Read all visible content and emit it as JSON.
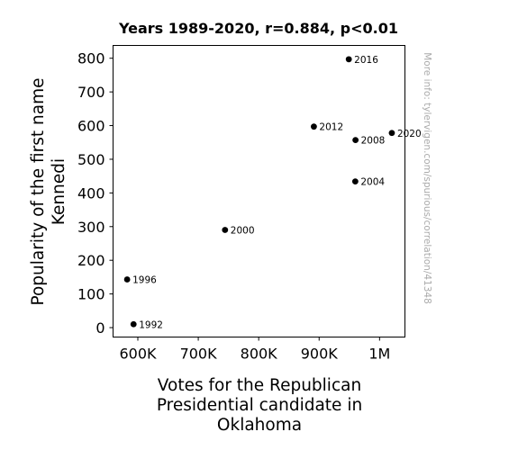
{
  "chart_data": {
    "type": "scatter",
    "title": "Years 1989-2020, r=0.884, p<0.01",
    "xlabel_lines": [
      "Votes for the Republican",
      "Presidential candidate in",
      "Oklahoma"
    ],
    "ylabel_lines": [
      "Popularity of the first name",
      "Kennedi"
    ],
    "xlim": [
      559000,
      1042000
    ],
    "ylim": [
      -28,
      838
    ],
    "x_ticks": [
      {
        "value": 600000,
        "label": "600K"
      },
      {
        "value": 700000,
        "label": "700K"
      },
      {
        "value": 800000,
        "label": "800K"
      },
      {
        "value": 900000,
        "label": "900K"
      },
      {
        "value": 1000000,
        "label": "1M"
      }
    ],
    "y_ticks": [
      {
        "value": 0,
        "label": "0"
      },
      {
        "value": 100,
        "label": "100"
      },
      {
        "value": 200,
        "label": "200"
      },
      {
        "value": 300,
        "label": "300"
      },
      {
        "value": 400,
        "label": "400"
      },
      {
        "value": 500,
        "label": "500"
      },
      {
        "value": 600,
        "label": "600"
      },
      {
        "value": 700,
        "label": "700"
      },
      {
        "value": 800,
        "label": "800"
      }
    ],
    "points": [
      {
        "label": "1992",
        "x": 592900,
        "y": 10
      },
      {
        "label": "1996",
        "x": 582300,
        "y": 143
      },
      {
        "label": "2000",
        "x": 744300,
        "y": 290
      },
      {
        "label": "2004",
        "x": 959800,
        "y": 434
      },
      {
        "label": "2008",
        "x": 960200,
        "y": 557
      },
      {
        "label": "2012",
        "x": 891300,
        "y": 597
      },
      {
        "label": "2016",
        "x": 949100,
        "y": 797
      },
      {
        "label": "2020",
        "x": 1020300,
        "y": 578
      }
    ],
    "grid": false,
    "point_color": "#000000"
  },
  "watermark": "More info: tylervigen.com/spurious/correlation/41348"
}
